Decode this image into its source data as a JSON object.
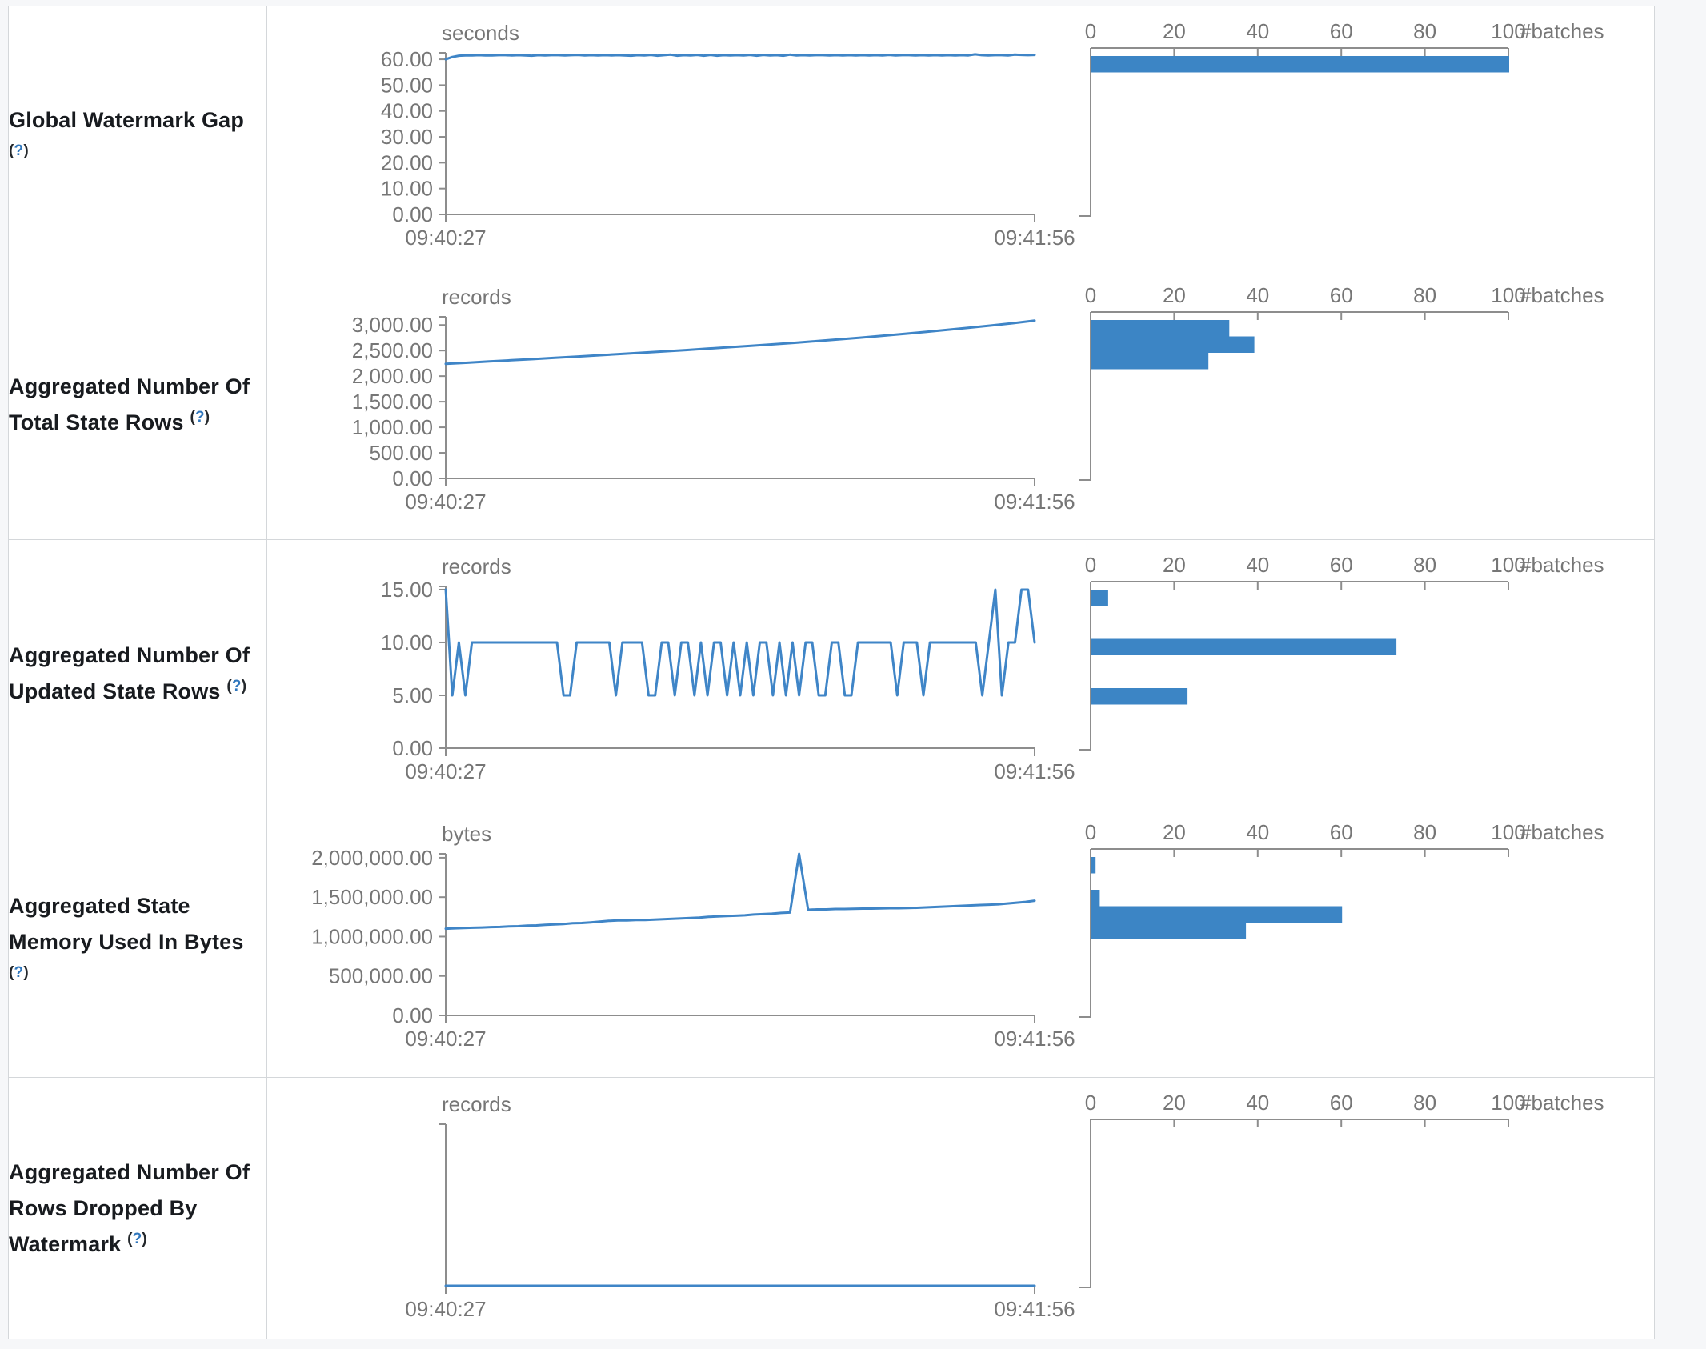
{
  "table": {
    "rows": [
      {
        "label": "Global Watermark Gap",
        "help": "(?)",
        "unit": "seconds",
        "y_tick_labels": [
          "0.00",
          "10.00",
          "20.00",
          "30.00",
          "40.00",
          "50.00",
          "60.00"
        ],
        "x_start_label": "09:40:27",
        "x_end_label": "09:41:56",
        "hist_tick_labels": [
          "0",
          "20",
          "40",
          "60",
          "80",
          "100"
        ],
        "hist_axis_label": "#batches"
      },
      {
        "label": "Aggregated Number Of Total State Rows",
        "help": "(?)",
        "unit": "records",
        "y_tick_labels": [
          "0.00",
          "500.00",
          "1,000.00",
          "1,500.00",
          "2,000.00",
          "2,500.00",
          "3,000.00"
        ],
        "x_start_label": "09:40:27",
        "x_end_label": "09:41:56",
        "hist_tick_labels": [
          "0",
          "20",
          "40",
          "60",
          "80",
          "100"
        ],
        "hist_axis_label": "#batches"
      },
      {
        "label": "Aggregated Number Of Updated State Rows",
        "help": "(?)",
        "unit": "records",
        "y_tick_labels": [
          "0.00",
          "5.00",
          "10.00",
          "15.00"
        ],
        "x_start_label": "09:40:27",
        "x_end_label": "09:41:56",
        "hist_tick_labels": [
          "0",
          "20",
          "40",
          "60",
          "80",
          "100"
        ],
        "hist_axis_label": "#batches"
      },
      {
        "label": "Aggregated State Memory Used In Bytes",
        "help": "(?)",
        "unit": "bytes",
        "y_tick_labels": [
          "0.00",
          "500,000.00",
          "1,000,000.00",
          "1,500,000.00",
          "2,000,000.00"
        ],
        "x_start_label": "09:40:27",
        "x_end_label": "09:41:56",
        "hist_tick_labels": [
          "0",
          "20",
          "40",
          "60",
          "80",
          "100"
        ],
        "hist_axis_label": "#batches"
      },
      {
        "label": "Aggregated Number Of Rows Dropped By Watermark",
        "help": "(?)",
        "unit": "records",
        "y_tick_labels": [],
        "x_start_label": "09:40:27",
        "x_end_label": "09:41:56",
        "hist_tick_labels": [
          "0",
          "20",
          "40",
          "60",
          "80",
          "100"
        ],
        "hist_axis_label": "#batches"
      }
    ]
  },
  "chart_data": [
    {
      "type": "line",
      "title": "Global Watermark Gap",
      "unit": "seconds",
      "x_range": [
        "09:40:27",
        "09:41:56"
      ],
      "ylim": [
        0,
        62.5
      ],
      "ylabel_ticks": [
        0,
        10,
        20,
        30,
        40,
        50,
        60
      ],
      "values": [
        60,
        60.9,
        61.4,
        61.5,
        61.5,
        61.6,
        61.5,
        61.5,
        61.6,
        61.6,
        61.5,
        61.6,
        61.5,
        61.4,
        61.6,
        61.5,
        61.6,
        61.6,
        61.5,
        61.6,
        61.7,
        61.5,
        61.6,
        61.5,
        61.6,
        61.5,
        61.6,
        61.5,
        61.4,
        61.6,
        61.5,
        61.7,
        61.4,
        61.6,
        61.8,
        61.4,
        61.6,
        61.5,
        61.7,
        61.4,
        61.7,
        61.4,
        61.6,
        61.5,
        61.6,
        61.5,
        61.7,
        61.4,
        61.7,
        61.5,
        61.6,
        61.4,
        61.8,
        61.5,
        61.6,
        61.5,
        61.6,
        61.6,
        61.5,
        61.6,
        61.5,
        61.6,
        61.5,
        61.6,
        61.5,
        61.6,
        61.5,
        61.7,
        61.5,
        61.6,
        61.6,
        61.5,
        61.6,
        61.5,
        61.6,
        61.5,
        61.6,
        61.5,
        61.6,
        61.5,
        61.9,
        61.6,
        61.5,
        61.6,
        61.6,
        61.5,
        61.8,
        61.7,
        61.6,
        61.7
      ],
      "histogram": {
        "type": "bar",
        "xlabel": "#batches",
        "xlim": [
          0,
          100
        ],
        "x_ticks": [
          0,
          20,
          40,
          60,
          80,
          100
        ],
        "bars": [
          {
            "bin": 0,
            "count": 100
          }
        ]
      }
    },
    {
      "type": "line",
      "title": "Aggregated Number Of Total State Rows",
      "unit": "records",
      "x_range": [
        "09:40:27",
        "09:41:56"
      ],
      "ylim": [
        0,
        3160
      ],
      "ylabel_ticks": [
        0,
        500,
        1000,
        1500,
        2000,
        2500,
        3000
      ],
      "values": [
        2240,
        2262,
        2287,
        2310,
        2333,
        2358,
        2382,
        2408,
        2432,
        2458,
        2483,
        2510,
        2538,
        2565,
        2593,
        2622,
        2652,
        2684,
        2718,
        2752,
        2788,
        2826,
        2865,
        2905,
        2948,
        2990,
        3035,
        3085
      ],
      "histogram": {
        "type": "bar",
        "xlabel": "#batches",
        "xlim": [
          0,
          100
        ],
        "x_ticks": [
          0,
          20,
          40,
          60,
          80,
          100
        ],
        "bars": [
          {
            "bin": 0,
            "count": 33
          },
          {
            "bin": 1,
            "count": 39
          },
          {
            "bin": 2,
            "count": 28
          }
        ]
      }
    },
    {
      "type": "line",
      "title": "Aggregated Number Of Updated State Rows",
      "unit": "records",
      "x_range": [
        "09:40:27",
        "09:41:56"
      ],
      "ylim": [
        0,
        15.3
      ],
      "ylabel_ticks": [
        0,
        5,
        10,
        15
      ],
      "values": [
        15,
        5,
        10,
        5,
        10,
        10,
        10,
        10,
        10,
        10,
        10,
        10,
        10,
        10,
        10,
        10,
        10,
        10,
        5,
        5,
        10,
        10,
        10,
        10,
        10,
        10,
        5,
        10,
        10,
        10,
        10,
        5,
        5,
        10,
        10,
        5,
        10,
        10,
        5,
        10,
        5,
        10,
        10,
        5,
        10,
        5,
        10,
        5,
        10,
        10,
        5,
        10,
        5,
        10,
        5,
        10,
        10,
        5,
        5,
        10,
        10,
        5,
        5,
        10,
        10,
        10,
        10,
        10,
        10,
        5,
        10,
        10,
        10,
        5,
        10,
        10,
        10,
        10,
        10,
        10,
        10,
        10,
        5,
        10,
        15,
        5,
        10,
        10,
        15,
        15,
        10
      ],
      "histogram": {
        "type": "bar",
        "xlabel": "#batches",
        "xlim": [
          0,
          100
        ],
        "x_ticks": [
          0,
          20,
          40,
          60,
          80,
          100
        ],
        "bars": [
          {
            "bin": 0,
            "count": 4
          },
          {
            "bin": 3,
            "count": 73
          },
          {
            "bin": 6,
            "count": 23
          }
        ]
      }
    },
    {
      "type": "line",
      "title": "Aggregated State Memory Used In Bytes",
      "unit": "bytes",
      "x_range": [
        "09:40:27",
        "09:41:56"
      ],
      "ylim": [
        0,
        2050000
      ],
      "ylabel_ticks": [
        0,
        500000,
        1000000,
        1500000,
        2000000
      ],
      "values": [
        1100000,
        1105000,
        1108000,
        1112000,
        1115000,
        1120000,
        1122000,
        1130000,
        1132000,
        1140000,
        1142000,
        1150000,
        1155000,
        1160000,
        1170000,
        1172000,
        1180000,
        1190000,
        1200000,
        1205000,
        1205000,
        1210000,
        1210000,
        1215000,
        1220000,
        1225000,
        1230000,
        1235000,
        1240000,
        1250000,
        1255000,
        1260000,
        1265000,
        1270000,
        1280000,
        1285000,
        1290000,
        1300000,
        1305000,
        2050000,
        1340000,
        1345000,
        1345000,
        1350000,
        1350000,
        1352000,
        1355000,
        1355000,
        1358000,
        1360000,
        1360000,
        1362000,
        1365000,
        1370000,
        1375000,
        1380000,
        1385000,
        1390000,
        1395000,
        1400000,
        1405000,
        1410000,
        1420000,
        1430000,
        1440000,
        1455000
      ],
      "histogram": {
        "type": "bar",
        "xlabel": "#batches",
        "xlim": [
          0,
          100
        ],
        "x_ticks": [
          0,
          20,
          40,
          60,
          80,
          100
        ],
        "bars": [
          {
            "bin": 0,
            "count": 1
          },
          {
            "bin": 2,
            "count": 2
          },
          {
            "bin": 3,
            "count": 60
          },
          {
            "bin": 4,
            "count": 37
          }
        ]
      }
    },
    {
      "type": "line",
      "title": "Aggregated Number Of Rows Dropped By Watermark",
      "unit": "records",
      "x_range": [
        "09:40:27",
        "09:41:56"
      ],
      "ylim": [
        0,
        1
      ],
      "ylabel_ticks": [],
      "values": [
        0,
        0
      ],
      "histogram": {
        "type": "bar",
        "xlabel": "#batches",
        "xlim": [
          0,
          100
        ],
        "x_ticks": [
          0,
          20,
          40,
          60,
          80,
          100
        ],
        "bars": []
      }
    }
  ]
}
